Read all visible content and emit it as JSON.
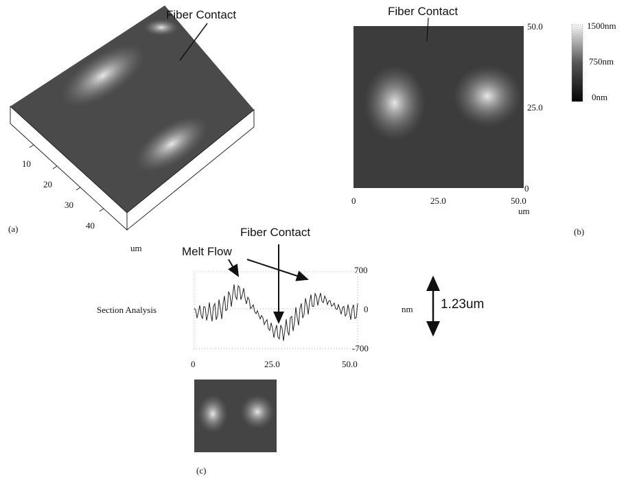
{
  "panel_a": {
    "label": "(a)",
    "annotation": "Fiber Contact",
    "axis_ticks": [
      "10",
      "20",
      "30",
      "40"
    ],
    "axis_unit": "um"
  },
  "panel_b": {
    "label": "(b)",
    "annotation": "Fiber Contact",
    "right_ticks": [
      "50.0",
      "25.0",
      "0"
    ],
    "bottom_ticks": [
      "0",
      "25.0",
      "50.0"
    ],
    "axis_unit": "um",
    "colorbar_labels": [
      "1500nm",
      "750nm",
      "0nm"
    ]
  },
  "panel_c": {
    "label": "(c)",
    "title": "Section Analysis",
    "annotation_contact": "Fiber Contact",
    "annotation_flow": "Melt Flow",
    "right_ticks": [
      "700",
      "0",
      "-700"
    ],
    "unit": "nm",
    "bottom_ticks": [
      "0",
      "25.0",
      "50.0"
    ],
    "height_label": "1.23um"
  }
}
